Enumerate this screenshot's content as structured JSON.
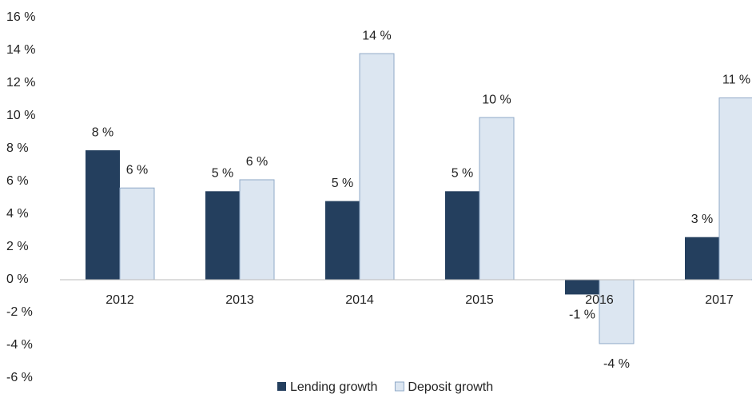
{
  "chart_data": {
    "type": "bar",
    "categories": [
      "2012",
      "2013",
      "2014",
      "2015",
      "2016",
      "2017"
    ],
    "series": [
      {
        "name": "Lending growth",
        "color": "#243f5e",
        "values": [
          7.9,
          5.4,
          4.8,
          5.4,
          -0.9,
          2.6
        ],
        "value_labels": [
          "8 %",
          "5 %",
          "5 %",
          "5 %",
          "-1 %",
          "3 %"
        ]
      },
      {
        "name": "Deposit growth",
        "color": "#dce6f1",
        "values": [
          5.6,
          6.1,
          13.8,
          9.9,
          -3.9,
          11.1
        ],
        "value_labels": [
          "6 %",
          "6 %",
          "14 %",
          "10 %",
          "-4 %",
          "11 %"
        ]
      }
    ],
    "ylim": [
      -6,
      16
    ],
    "yticks": [
      {
        "value": -6,
        "label": "-6 %"
      },
      {
        "value": -4,
        "label": "-4 %"
      },
      {
        "value": -2,
        "label": "-2 %"
      },
      {
        "value": 0,
        "label": "0 %"
      },
      {
        "value": 2,
        "label": "2 %"
      },
      {
        "value": 4,
        "label": "4 %"
      },
      {
        "value": 6,
        "label": "6 %"
      },
      {
        "value": 8,
        "label": "8 %"
      },
      {
        "value": 10,
        "label": "10 %"
      },
      {
        "value": 12,
        "label": "12 %"
      },
      {
        "value": 14,
        "label": "14 %"
      },
      {
        "value": 16,
        "label": "16 %"
      }
    ],
    "grid": false,
    "legend": "bottom"
  }
}
